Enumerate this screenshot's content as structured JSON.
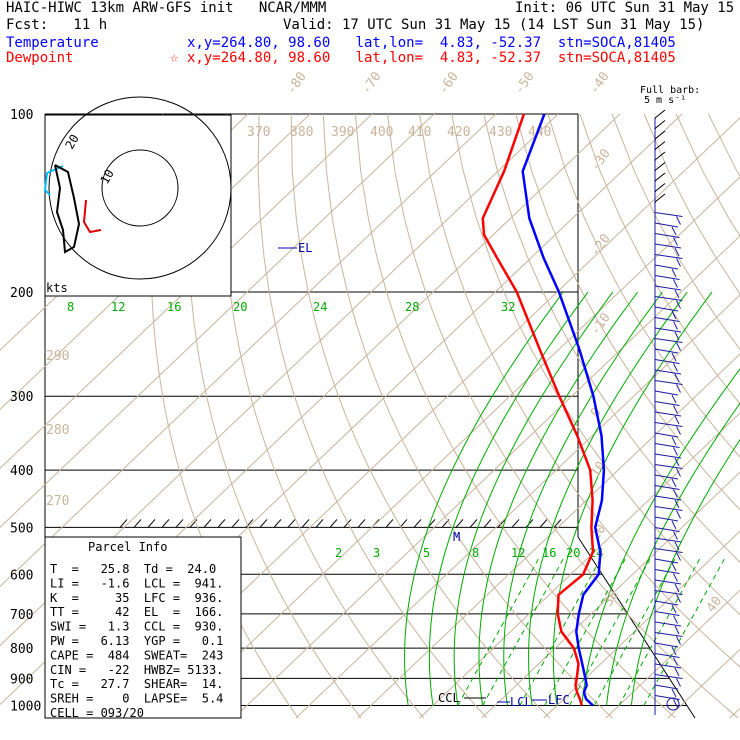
{
  "header": {
    "model": "HAIC-HIWC 13km ARW-GFS init   NCAR/MMM",
    "init": "Init: 06 UTC Sun 31 May 15",
    "fcst": "Fcst:   11 h",
    "valid": "Valid: 17 UTC Sun 31 May 15 (14 LST Sun 31 May 15)",
    "temp_label": "Temperature",
    "temp_info": "x,y=264.80, 98.60   lat,lon=  4.83, -52.37  stn=SOCA,81405",
    "dewp_label": "Dewpoint",
    "dewp_info": "x,y=264.80, 98.60   lat,lon=  4.83, -52.37  stn=SOCA,81405",
    "dewp_star": "☆"
  },
  "barb_legend": {
    "line1": "Full barb:",
    "line2": "5 m s⁻¹"
  },
  "parcel_info": {
    "title": "Parcel Info",
    "rows": [
      "T  =   25.8  Td =  24.0",
      "LI =   -1.6  LCL =  941.",
      "K  =     35  LFC =  936.",
      "TT =     42  EL  =  166.",
      "SWI =   1.3  CCL =  930.",
      "PW =   6.13  YGP =   0.1",
      "CAPE =  484  SWEAT=  243",
      "CIN =   -22  HWBZ= 5133.",
      "Tc =   27.7  SHEAR=  14.",
      "SREH =    0  LAPSE=  5.4",
      "CELL = 093/20"
    ]
  },
  "hodograph": {
    "ring_inner": "10",
    "ring_outer": "20",
    "units": "kts"
  },
  "chart_data": {
    "type": "line",
    "title": "",
    "pressure_ticks": [
      "100",
      "200",
      "300",
      "400",
      "500",
      "600",
      "700",
      "800",
      "900",
      "1000"
    ],
    "isotherm_labels": [
      "-80",
      "-70",
      "-60",
      "-50",
      "-40",
      "-30",
      "-20",
      "-10",
      "0",
      "10",
      "20",
      "30",
      "40"
    ],
    "theta_top_labels": [
      "370",
      "380",
      "390",
      "400",
      "410",
      "420",
      "430",
      "440"
    ],
    "theta_left_labels": [
      "290",
      "280",
      "270"
    ],
    "moist_adiabat_labels": [
      "8",
      "12",
      "16",
      "20",
      "24",
      "28",
      "32"
    ],
    "mixing_ratio_labels": [
      "2",
      "3",
      "5",
      "8",
      "12",
      "16",
      "20",
      "24"
    ],
    "annotations": {
      "el": "EL",
      "lcl": "LCL",
      "lfc": "LFC",
      "ccl": "CCL",
      "m": "M"
    },
    "series": [
      {
        "name": "Temperature",
        "color": "#0000ff",
        "points": [
          {
            "p": 1000,
            "t": 25.8
          },
          {
            "p": 975,
            "t": 23.6
          },
          {
            "p": 950,
            "t": 22.1
          },
          {
            "p": 925,
            "t": 21.4
          },
          {
            "p": 900,
            "t": 20.0
          },
          {
            "p": 850,
            "t": 17.0
          },
          {
            "p": 800,
            "t": 13.8
          },
          {
            "p": 750,
            "t": 10.6
          },
          {
            "p": 700,
            "t": 8.0
          },
          {
            "p": 650,
            "t": 5.5
          },
          {
            "p": 600,
            "t": 4.5
          },
          {
            "p": 550,
            "t": 1.0
          },
          {
            "p": 500,
            "t": -4.0
          },
          {
            "p": 450,
            "t": -7.5
          },
          {
            "p": 400,
            "t": -12.3
          },
          {
            "p": 350,
            "t": -18.5
          },
          {
            "p": 300,
            "t": -26.5
          },
          {
            "p": 250,
            "t": -36.7
          },
          {
            "p": 200,
            "t": -49.7
          },
          {
            "p": 175,
            "t": -58.0
          },
          {
            "p": 150,
            "t": -67.0
          },
          {
            "p": 125,
            "t": -76.0
          },
          {
            "p": 100,
            "t": -82.2
          }
        ]
      },
      {
        "name": "Dewpoint",
        "color": "#ff0000",
        "points": [
          {
            "p": 1000,
            "t": 24.0
          },
          {
            "p": 975,
            "t": 22.6
          },
          {
            "p": 950,
            "t": 21.0
          },
          {
            "p": 925,
            "t": 19.6
          },
          {
            "p": 900,
            "t": 18.6
          },
          {
            "p": 850,
            "t": 16.4
          },
          {
            "p": 800,
            "t": 13.0
          },
          {
            "p": 750,
            "t": 8.2
          },
          {
            "p": 700,
            "t": 4.6
          },
          {
            "p": 650,
            "t": 1.5
          },
          {
            "p": 600,
            "t": 2.0
          },
          {
            "p": 550,
            "t": -0.2
          },
          {
            "p": 500,
            "t": -4.6
          },
          {
            "p": 450,
            "t": -9.0
          },
          {
            "p": 400,
            "t": -14.5
          },
          {
            "p": 350,
            "t": -22.4
          },
          {
            "p": 300,
            "t": -32.0
          },
          {
            "p": 250,
            "t": -43.1
          },
          {
            "p": 200,
            "t": -56.5
          },
          {
            "p": 175,
            "t": -65.5
          },
          {
            "p": 160,
            "t": -71.5
          },
          {
            "p": 150,
            "t": -74.5
          },
          {
            "p": 125,
            "t": -79.0
          },
          {
            "p": 100,
            "t": -85.5
          }
        ]
      }
    ],
    "colors": {
      "isotherm": "#c8b49a",
      "moist_adiabat": "#00aa00",
      "mixing_ratio": "#00aa00",
      "isobar": "#000000"
    }
  }
}
